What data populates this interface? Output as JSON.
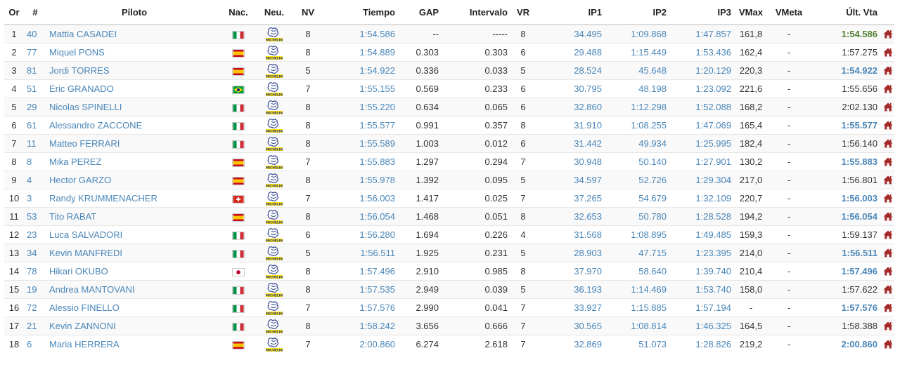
{
  "columns": {
    "or": "Or",
    "num": "#",
    "piloto": "Piloto",
    "nac": "Nac.",
    "neu": "Neu.",
    "nv": "NV",
    "tiempo": "Tiempo",
    "gap": "GAP",
    "intervalo": "Intervalo",
    "vr": "VR",
    "ip1": "IP1",
    "ip2": "IP2",
    "ip3": "IP3",
    "vmax": "VMax",
    "vmeta": "VMeta",
    "ult": "Últ. Vta"
  },
  "tyre_brand": "MICHELIN",
  "colors": {
    "link": "#4a86b8",
    "best_overall": "#4f7d2c",
    "home_icon": "#a52a2a"
  },
  "rows": [
    {
      "or": "1",
      "num": "40",
      "piloto": "Mattia CASADEI",
      "nac": "ITA",
      "nv": "8",
      "tiempo": "1:54.586",
      "gap": "--",
      "intervalo": "-----",
      "vr": "8",
      "ip1": "34.495",
      "ip2": "1:09.868",
      "ip3": "1:47.857",
      "vmax": "161,8",
      "vmeta": "-",
      "ult": "1:54.586",
      "ult_style": "overall"
    },
    {
      "or": "2",
      "num": "77",
      "piloto": "Miquel PONS",
      "nac": "ESP",
      "nv": "8",
      "tiempo": "1:54.889",
      "gap": "0.303",
      "intervalo": "0.303",
      "vr": "6",
      "ip1": "29.488",
      "ip2": "1:15.449",
      "ip3": "1:53.436",
      "vmax": "162,4",
      "vmeta": "-",
      "ult": "1:57.275",
      "ult_style": "normal"
    },
    {
      "or": "3",
      "num": "81",
      "piloto": "Jordi TORRES",
      "nac": "ESP",
      "nv": "5",
      "tiempo": "1:54.922",
      "gap": "0.336",
      "intervalo": "0.033",
      "vr": "5",
      "ip1": "28.524",
      "ip2": "45.648",
      "ip3": "1:20.129",
      "vmax": "220,3",
      "vmeta": "-",
      "ult": "1:54.922",
      "ult_style": "best"
    },
    {
      "or": "4",
      "num": "51",
      "piloto": "Eric GRANADO",
      "nac": "BRA",
      "nv": "7",
      "tiempo": "1:55.155",
      "gap": "0.569",
      "intervalo": "0.233",
      "vr": "6",
      "ip1": "30.795",
      "ip2": "48.198",
      "ip3": "1:23.092",
      "vmax": "221,6",
      "vmeta": "-",
      "ult": "1:55.656",
      "ult_style": "normal"
    },
    {
      "or": "5",
      "num": "29",
      "piloto": "Nicolas SPINELLI",
      "nac": "ITA",
      "nv": "8",
      "tiempo": "1:55.220",
      "gap": "0.634",
      "intervalo": "0.065",
      "vr": "6",
      "ip1": "32.860",
      "ip2": "1:12.298",
      "ip3": "1:52.088",
      "vmax": "168,2",
      "vmeta": "-",
      "ult": "2:02.130",
      "ult_style": "normal"
    },
    {
      "or": "6",
      "num": "61",
      "piloto": "Alessandro ZACCONE",
      "nac": "ITA",
      "nv": "8",
      "tiempo": "1:55.577",
      "gap": "0.991",
      "intervalo": "0.357",
      "vr": "8",
      "ip1": "31.910",
      "ip2": "1:08.255",
      "ip3": "1:47.069",
      "vmax": "165,4",
      "vmeta": "-",
      "ult": "1:55.577",
      "ult_style": "best"
    },
    {
      "or": "7",
      "num": "11",
      "piloto": "Matteo FERRARI",
      "nac": "ITA",
      "nv": "8",
      "tiempo": "1:55.589",
      "gap": "1.003",
      "intervalo": "0.012",
      "vr": "6",
      "ip1": "31.442",
      "ip2": "49.934",
      "ip3": "1:25.995",
      "vmax": "182,4",
      "vmeta": "-",
      "ult": "1:56.140",
      "ult_style": "normal"
    },
    {
      "or": "8",
      "num": "8",
      "piloto": "Mika PEREZ",
      "nac": "ESP",
      "nv": "7",
      "tiempo": "1:55.883",
      "gap": "1.297",
      "intervalo": "0.294",
      "vr": "7",
      "ip1": "30.948",
      "ip2": "50.140",
      "ip3": "1:27.901",
      "vmax": "130,2",
      "vmeta": "-",
      "ult": "1:55.883",
      "ult_style": "best"
    },
    {
      "or": "9",
      "num": "4",
      "piloto": "Hector GARZO",
      "nac": "ESP",
      "nv": "8",
      "tiempo": "1:55.978",
      "gap": "1.392",
      "intervalo": "0.095",
      "vr": "5",
      "ip1": "34.597",
      "ip2": "52.726",
      "ip3": "1:29.304",
      "vmax": "217,0",
      "vmeta": "-",
      "ult": "1:56.801",
      "ult_style": "normal"
    },
    {
      "or": "10",
      "num": "3",
      "piloto": "Randy KRUMMENACHER",
      "nac": "SUI",
      "nv": "7",
      "tiempo": "1:56.003",
      "gap": "1.417",
      "intervalo": "0.025",
      "vr": "7",
      "ip1": "37.265",
      "ip2": "54.679",
      "ip3": "1:32.109",
      "vmax": "220,7",
      "vmeta": "-",
      "ult": "1:56.003",
      "ult_style": "best"
    },
    {
      "or": "11",
      "num": "53",
      "piloto": "Tito RABAT",
      "nac": "ESP",
      "nv": "8",
      "tiempo": "1:56.054",
      "gap": "1.468",
      "intervalo": "0.051",
      "vr": "8",
      "ip1": "32.653",
      "ip2": "50.780",
      "ip3": "1:28.528",
      "vmax": "194,2",
      "vmeta": "-",
      "ult": "1:56.054",
      "ult_style": "best"
    },
    {
      "or": "12",
      "num": "23",
      "piloto": "Luca SALVADORI",
      "nac": "ITA",
      "nv": "6",
      "tiempo": "1:56.280",
      "gap": "1.694",
      "intervalo": "0.226",
      "vr": "4",
      "ip1": "31.568",
      "ip2": "1:08.895",
      "ip3": "1:49.485",
      "vmax": "159,3",
      "vmeta": "-",
      "ult": "1:59.137",
      "ult_style": "normal"
    },
    {
      "or": "13",
      "num": "34",
      "piloto": "Kevin MANFREDI",
      "nac": "ITA",
      "nv": "5",
      "tiempo": "1:56.511",
      "gap": "1.925",
      "intervalo": "0.231",
      "vr": "5",
      "ip1": "28.903",
      "ip2": "47.715",
      "ip3": "1:23.395",
      "vmax": "214,0",
      "vmeta": "-",
      "ult": "1:56.511",
      "ult_style": "best"
    },
    {
      "or": "14",
      "num": "78",
      "piloto": "Hikari OKUBO",
      "nac": "JPN",
      "nv": "8",
      "tiempo": "1:57.496",
      "gap": "2.910",
      "intervalo": "0.985",
      "vr": "8",
      "ip1": "37.970",
      "ip2": "58.640",
      "ip3": "1:39.740",
      "vmax": "210,4",
      "vmeta": "-",
      "ult": "1:57.496",
      "ult_style": "best"
    },
    {
      "or": "15",
      "num": "19",
      "piloto": "Andrea MANTOVANI",
      "nac": "ITA",
      "nv": "8",
      "tiempo": "1:57.535",
      "gap": "2.949",
      "intervalo": "0.039",
      "vr": "5",
      "ip1": "36.193",
      "ip2": "1:14.469",
      "ip3": "1:53.740",
      "vmax": "158,0",
      "vmeta": "-",
      "ult": "1:57.622",
      "ult_style": "normal"
    },
    {
      "or": "16",
      "num": "72",
      "piloto": "Alessio FINELLO",
      "nac": "ITA",
      "nv": "7",
      "tiempo": "1:57.576",
      "gap": "2.990",
      "intervalo": "0.041",
      "vr": "7",
      "ip1": "33.927",
      "ip2": "1:15.885",
      "ip3": "1:57.194",
      "vmax": "-",
      "vmeta": "-",
      "ult": "1:57.576",
      "ult_style": "best"
    },
    {
      "or": "17",
      "num": "21",
      "piloto": "Kevin ZANNONI",
      "nac": "ITA",
      "nv": "8",
      "tiempo": "1:58.242",
      "gap": "3.656",
      "intervalo": "0.666",
      "vr": "7",
      "ip1": "30.565",
      "ip2": "1:08.814",
      "ip3": "1:46.325",
      "vmax": "164,5",
      "vmeta": "-",
      "ult": "1:58.388",
      "ult_style": "normal"
    },
    {
      "or": "18",
      "num": "6",
      "piloto": "Maria HERRERA",
      "nac": "ESP",
      "nv": "7",
      "tiempo": "2:00.860",
      "gap": "6.274",
      "intervalo": "2.618",
      "vr": "7",
      "ip1": "32.869",
      "ip2": "51.073",
      "ip3": "1:28.826",
      "vmax": "219,2",
      "vmeta": "-",
      "ult": "2:00.860",
      "ult_style": "best"
    }
  ]
}
